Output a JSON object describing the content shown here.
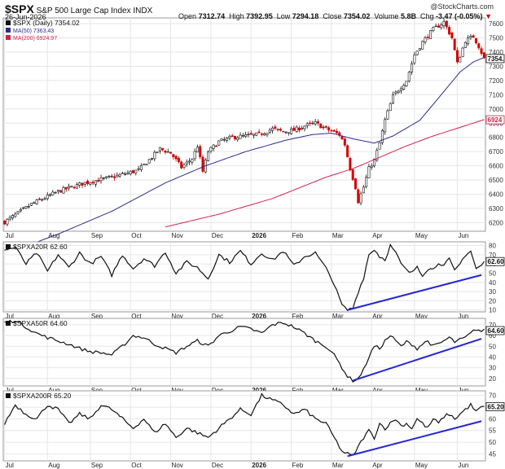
{
  "header": {
    "symbol": "$SPX",
    "name": "S&P 500 Large Cap Index",
    "exchange": "INDX",
    "date": "26-Jun-2026",
    "watermark": "@StockCharts.com",
    "open_label": "Open",
    "open": "7312.74",
    "high_label": "High",
    "high": "7392.95",
    "low_label": "Low",
    "low": "7294.18",
    "close_label": "Close",
    "close": "7354.02",
    "volume_label": "Volume",
    "volume": "5.8B",
    "chg_label": "Chg",
    "chg": "-3.47 (-0.05%)"
  },
  "colors": {
    "up": "#111111",
    "down": "#d40000",
    "ma50": "#2b2b8f",
    "ma200": "#d2224a",
    "trendline": "#2424d8",
    "grid": "#e6e6e6",
    "axis": "#999999"
  },
  "chart_data": [
    {
      "type": "candlestick",
      "title": "$SPX (Daily) 7354.02",
      "legend": [
        {
          "label": "$SPX (Daily) 7354.02",
          "color": "#111111"
        },
        {
          "label": "MA(50) 7363.43",
          "color": "#2b2b8f"
        },
        {
          "label": "MA(200) 6924.97",
          "color": "#d2224a"
        }
      ],
      "ylim": [
        6140,
        7640
      ],
      "y_ticks": [
        6200,
        6300,
        6400,
        6500,
        6600,
        6700,
        6800,
        6900,
        7000,
        7100,
        7200,
        7300,
        7400,
        7500,
        7600
      ],
      "last_value_tags": [
        {
          "label": "7354.",
          "value": 7354,
          "color": "#111111"
        },
        {
          "label": "6924",
          "value": 6924,
          "color": "#d2224a"
        }
      ],
      "price_keypoints": [
        [
          0,
          6205
        ],
        [
          10,
          6330
        ],
        [
          20,
          6420
        ],
        [
          30,
          6480
        ],
        [
          40,
          6520
        ],
        [
          50,
          6570
        ],
        [
          55,
          6660
        ],
        [
          58,
          6720
        ],
        [
          62,
          6690
        ],
        [
          66,
          6590
        ],
        [
          70,
          6650
        ],
        [
          72,
          6740
        ],
        [
          74,
          6560
        ],
        [
          76,
          6700
        ],
        [
          80,
          6770
        ],
        [
          85,
          6800
        ],
        [
          90,
          6810
        ],
        [
          95,
          6820
        ],
        [
          100,
          6860
        ],
        [
          104,
          6840
        ],
        [
          108,
          6850
        ],
        [
          112,
          6880
        ],
        [
          116,
          6900
        ],
        [
          120,
          6860
        ],
        [
          125,
          6820
        ],
        [
          127,
          6750
        ],
        [
          129,
          6580
        ],
        [
          131,
          6450
        ],
        [
          132,
          6350
        ],
        [
          134,
          6450
        ],
        [
          136,
          6580
        ],
        [
          138,
          6640
        ],
        [
          140,
          6760
        ],
        [
          142,
          6920
        ],
        [
          145,
          7090
        ],
        [
          150,
          7200
        ],
        [
          153,
          7380
        ],
        [
          156,
          7470
        ],
        [
          160,
          7560
        ],
        [
          164,
          7610
        ],
        [
          167,
          7500
        ],
        [
          169,
          7320
        ],
        [
          172,
          7480
        ],
        [
          175,
          7510
        ],
        [
          177,
          7440
        ],
        [
          179,
          7354
        ]
      ],
      "ma50_keypoints": [
        [
          0,
          5980
        ],
        [
          20,
          6120
        ],
        [
          40,
          6280
        ],
        [
          60,
          6480
        ],
        [
          75,
          6600
        ],
        [
          90,
          6700
        ],
        [
          105,
          6780
        ],
        [
          115,
          6820
        ],
        [
          122,
          6830
        ],
        [
          130,
          6790
        ],
        [
          138,
          6760
        ],
        [
          145,
          6810
        ],
        [
          155,
          6920
        ],
        [
          163,
          7100
        ],
        [
          170,
          7260
        ],
        [
          175,
          7330
        ],
        [
          179,
          7363
        ]
      ],
      "ma200_keypoints": [
        [
          60,
          6170
        ],
        [
          80,
          6260
        ],
        [
          100,
          6370
        ],
        [
          120,
          6520
        ],
        [
          130,
          6580
        ],
        [
          140,
          6660
        ],
        [
          150,
          6740
        ],
        [
          160,
          6810
        ],
        [
          170,
          6870
        ],
        [
          179,
          6925
        ]
      ]
    },
    {
      "type": "line",
      "title": "$SPXA20R 62.60",
      "legend": [
        {
          "label": "$SPXA20R 62.60",
          "color": "#111111"
        }
      ],
      "ylim": [
        8,
        84
      ],
      "y_ticks": [
        10,
        20,
        30,
        40,
        50,
        60,
        70,
        80
      ],
      "last_value_tag": {
        "label": "62.60",
        "value": 62.6
      },
      "keypoints": [
        [
          0,
          75
        ],
        [
          4,
          78
        ],
        [
          8,
          60
        ],
        [
          12,
          72
        ],
        [
          16,
          52
        ],
        [
          20,
          70
        ],
        [
          24,
          56
        ],
        [
          28,
          72
        ],
        [
          32,
          60
        ],
        [
          36,
          68
        ],
        [
          40,
          48
        ],
        [
          44,
          70
        ],
        [
          48,
          55
        ],
        [
          52,
          66
        ],
        [
          56,
          58
        ],
        [
          60,
          73
        ],
        [
          64,
          50
        ],
        [
          68,
          62
        ],
        [
          72,
          56
        ],
        [
          76,
          44
        ],
        [
          80,
          70
        ],
        [
          84,
          62
        ],
        [
          88,
          74
        ],
        [
          92,
          60
        ],
        [
          96,
          72
        ],
        [
          100,
          64
        ],
        [
          104,
          74
        ],
        [
          108,
          58
        ],
        [
          112,
          68
        ],
        [
          116,
          72
        ],
        [
          120,
          55
        ],
        [
          122,
          45
        ],
        [
          124,
          30
        ],
        [
          126,
          15
        ],
        [
          128,
          10
        ],
        [
          130,
          12
        ],
        [
          132,
          30
        ],
        [
          134,
          45
        ],
        [
          136,
          70
        ],
        [
          138,
          76
        ],
        [
          140,
          68
        ],
        [
          142,
          65
        ],
        [
          144,
          80
        ],
        [
          146,
          72
        ],
        [
          148,
          60
        ],
        [
          150,
          53
        ],
        [
          152,
          50
        ],
        [
          154,
          58
        ],
        [
          156,
          48
        ],
        [
          158,
          55
        ],
        [
          160,
          54
        ],
        [
          162,
          62
        ],
        [
          164,
          58
        ],
        [
          166,
          65
        ],
        [
          168,
          52
        ],
        [
          170,
          60
        ],
        [
          172,
          70
        ],
        [
          174,
          74
        ],
        [
          176,
          55
        ],
        [
          178,
          58
        ],
        [
          179,
          62.6
        ]
      ],
      "trendline": {
        "from": [
          128,
          10
        ],
        "to": [
          178,
          48
        ]
      }
    },
    {
      "type": "line",
      "title": "$SPXA50R 64.60",
      "legend": [
        {
          "label": "$SPXA50R 64.60",
          "color": "#111111"
        }
      ],
      "ylim": [
        13,
        76
      ],
      "y_ticks": [
        20,
        30,
        40,
        50,
        60,
        70
      ],
      "last_value_tag": {
        "label": "64.60",
        "value": 64.6
      },
      "keypoints": [
        [
          0,
          72
        ],
        [
          4,
          74
        ],
        [
          8,
          68
        ],
        [
          12,
          62
        ],
        [
          16,
          58
        ],
        [
          20,
          55
        ],
        [
          24,
          52
        ],
        [
          28,
          48
        ],
        [
          32,
          45
        ],
        [
          36,
          44
        ],
        [
          40,
          42
        ],
        [
          44,
          50
        ],
        [
          48,
          60
        ],
        [
          52,
          58
        ],
        [
          56,
          52
        ],
        [
          60,
          48
        ],
        [
          64,
          44
        ],
        [
          68,
          50
        ],
        [
          72,
          55
        ],
        [
          76,
          50
        ],
        [
          80,
          60
        ],
        [
          84,
          64
        ],
        [
          88,
          68
        ],
        [
          92,
          66
        ],
        [
          96,
          62
        ],
        [
          100,
          70
        ],
        [
          104,
          72
        ],
        [
          108,
          68
        ],
        [
          112,
          62
        ],
        [
          116,
          55
        ],
        [
          120,
          50
        ],
        [
          122,
          45
        ],
        [
          124,
          38
        ],
        [
          126,
          30
        ],
        [
          128,
          22
        ],
        [
          130,
          18
        ],
        [
          132,
          20
        ],
        [
          134,
          28
        ],
        [
          136,
          40
        ],
        [
          138,
          50
        ],
        [
          140,
          48
        ],
        [
          142,
          55
        ],
        [
          144,
          60
        ],
        [
          146,
          55
        ],
        [
          148,
          50
        ],
        [
          150,
          54
        ],
        [
          152,
          52
        ],
        [
          154,
          48
        ],
        [
          156,
          52
        ],
        [
          158,
          55
        ],
        [
          160,
          50
        ],
        [
          162,
          52
        ],
        [
          164,
          55
        ],
        [
          166,
          58
        ],
        [
          168,
          54
        ],
        [
          170,
          56
        ],
        [
          172,
          58
        ],
        [
          174,
          62
        ],
        [
          176,
          66
        ],
        [
          178,
          64
        ],
        [
          179,
          64.6
        ]
      ],
      "trendline": {
        "from": [
          130,
          18
        ],
        "to": [
          178,
          57
        ]
      }
    },
    {
      "type": "line",
      "title": "$SPXA200R 65.20",
      "legend": [
        {
          "label": "$SPXA200R 65.20",
          "color": "#111111"
        }
      ],
      "ylim": [
        42,
        72
      ],
      "y_ticks": [
        45,
        50,
        55,
        60,
        65,
        70
      ],
      "last_value_tag": {
        "label": "65.20",
        "value": 65.2
      },
      "keypoints": [
        [
          0,
          58
        ],
        [
          4,
          66
        ],
        [
          8,
          62
        ],
        [
          12,
          60
        ],
        [
          16,
          66
        ],
        [
          20,
          64
        ],
        [
          24,
          58
        ],
        [
          28,
          62
        ],
        [
          32,
          60
        ],
        [
          36,
          66
        ],
        [
          40,
          64
        ],
        [
          44,
          60
        ],
        [
          48,
          56
        ],
        [
          52,
          60
        ],
        [
          56,
          54
        ],
        [
          60,
          58
        ],
        [
          64,
          52
        ],
        [
          68,
          56
        ],
        [
          72,
          54
        ],
        [
          76,
          52
        ],
        [
          80,
          56
        ],
        [
          84,
          60
        ],
        [
          88,
          64
        ],
        [
          92,
          62
        ],
        [
          96,
          70
        ],
        [
          100,
          68
        ],
        [
          104,
          66
        ],
        [
          108,
          62
        ],
        [
          112,
          64
        ],
        [
          116,
          60
        ],
        [
          120,
          58
        ],
        [
          122,
          54
        ],
        [
          124,
          50
        ],
        [
          126,
          46
        ],
        [
          128,
          45
        ],
        [
          130,
          44
        ],
        [
          132,
          48
        ],
        [
          134,
          52
        ],
        [
          136,
          55
        ],
        [
          138,
          52
        ],
        [
          140,
          58
        ],
        [
          142,
          56
        ],
        [
          144,
          58
        ],
        [
          146,
          60
        ],
        [
          148,
          57
        ],
        [
          150,
          58
        ],
        [
          152,
          56
        ],
        [
          154,
          60
        ],
        [
          156,
          58
        ],
        [
          158,
          56
        ],
        [
          160,
          60
        ],
        [
          162,
          58
        ],
        [
          164,
          61
        ],
        [
          166,
          62
        ],
        [
          168,
          60
        ],
        [
          170,
          62
        ],
        [
          172,
          64
        ],
        [
          174,
          66
        ],
        [
          176,
          63
        ],
        [
          178,
          65
        ],
        [
          179,
          65.2
        ]
      ],
      "trendline": {
        "from": [
          128,
          44
        ],
        "to": [
          178,
          59
        ]
      }
    }
  ],
  "x_axis_months": [
    {
      "label": "Jul",
      "index": 0
    },
    {
      "label": "Aug",
      "index": 21
    },
    {
      "label": "Sep",
      "index": 42
    },
    {
      "label": "Oct",
      "index": 62
    },
    {
      "label": "Nov",
      "index": 83
    },
    {
      "label": "Dec",
      "index": 102
    },
    {
      "label": "2026",
      "index": 123
    },
    {
      "label": "Feb",
      "index": 143
    },
    {
      "label": "Mar",
      "index": 162
    },
    {
      "label": "Apr",
      "index": 183
    },
    {
      "label": "May",
      "index": 204
    },
    {
      "label": "Jun",
      "index": 225
    }
  ],
  "x_axis_bold": [
    "2026"
  ]
}
